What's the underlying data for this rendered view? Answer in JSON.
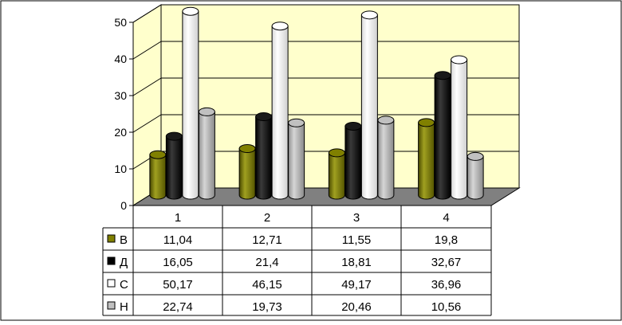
{
  "chart_data": {
    "type": "bar",
    "title": "",
    "xlabel": "",
    "ylabel": "",
    "ylim": [
      0,
      50
    ],
    "yticks": [
      "0",
      "10",
      "20",
      "30",
      "40",
      "50"
    ],
    "grid": true,
    "legend": "data-table-left",
    "categories": [
      "1",
      "2",
      "3",
      "4"
    ],
    "series": [
      {
        "name": "В",
        "color": "#808000",
        "values": [
          11.04,
          12.71,
          11.55,
          19.8
        ],
        "labels": [
          "11,04",
          "12,71",
          "11,55",
          "19,8"
        ]
      },
      {
        "name": "Д",
        "color": "#000000",
        "values": [
          16.05,
          21.4,
          18.81,
          32.67
        ],
        "labels": [
          "16,05",
          "21,4",
          "18,81",
          "32,67"
        ]
      },
      {
        "name": "С",
        "color": "#ffffff",
        "values": [
          50.17,
          46.15,
          49.17,
          36.96
        ],
        "labels": [
          "50,17",
          "46,15",
          "49,17",
          "36,96"
        ]
      },
      {
        "name": "Н",
        "color": "#c0c0c0",
        "values": [
          22.74,
          19.73,
          20.46,
          10.56
        ],
        "labels": [
          "22,74",
          "19,73",
          "20,46",
          "10,56"
        ]
      }
    ],
    "wall_color": "#ffffcc",
    "floor_color": "#808080"
  }
}
